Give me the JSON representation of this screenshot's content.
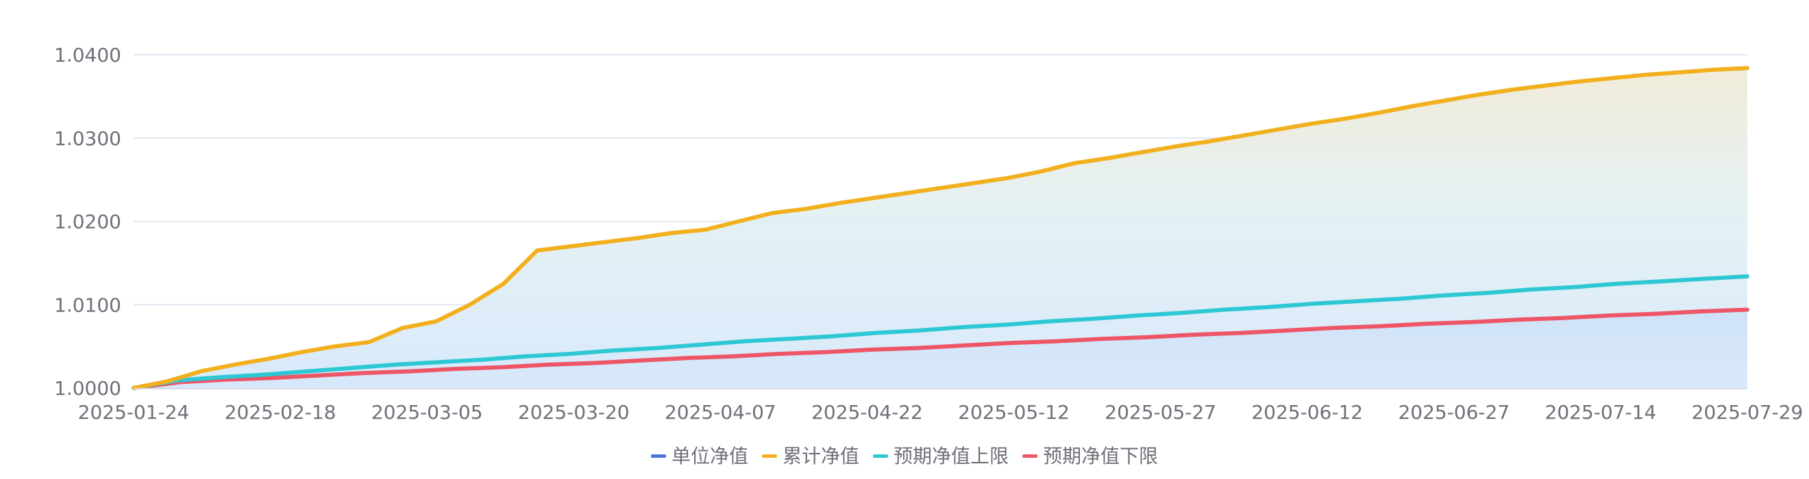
{
  "chart_data": {
    "type": "area",
    "ylim": [
      1.0,
      1.04
    ],
    "y_ticks": [
      "1.0000",
      "1.0100",
      "1.0200",
      "1.0300",
      "1.0400"
    ],
    "y_tick_values": [
      1.0,
      1.01,
      1.02,
      1.03,
      1.04
    ],
    "x_ticks": [
      "2025-01-24",
      "2025-02-18",
      "2025-03-05",
      "2025-03-20",
      "2025-04-07",
      "2025-04-22",
      "2025-05-12",
      "2025-05-27",
      "2025-06-12",
      "2025-06-27",
      "2025-07-14",
      "2025-07-29"
    ],
    "grid": true,
    "legend_position": "bottom",
    "series": [
      {
        "name": "单位净值",
        "color": "#4d73df",
        "values": []
      },
      {
        "name": "累计净值",
        "color": "#f2b01e",
        "values": [
          1.0,
          1.0008,
          1.002,
          1.0028,
          1.0035,
          1.0043,
          1.005,
          1.0055,
          1.0072,
          1.008,
          1.01,
          1.0125,
          1.0165,
          1.017,
          1.0175,
          1.018,
          1.0186,
          1.019,
          1.02,
          1.021,
          1.0215,
          1.0222,
          1.0228,
          1.0234,
          1.024,
          1.0246,
          1.0252,
          1.026,
          1.027,
          1.0276,
          1.0283,
          1.029,
          1.0296,
          1.0303,
          1.031,
          1.0317,
          1.0323,
          1.033,
          1.0338,
          1.0345,
          1.0352,
          1.0358,
          1.0363,
          1.0368,
          1.0372,
          1.0376,
          1.0379,
          1.0382,
          1.0384
        ]
      },
      {
        "name": "预期净值上限",
        "color": "#2ec7d4",
        "values": [
          1.0,
          1.0009,
          1.0013,
          1.0016,
          1.002,
          1.0024,
          1.0028,
          1.0031,
          1.0034,
          1.0038,
          1.0041,
          1.0045,
          1.0048,
          1.0052,
          1.0056,
          1.0059,
          1.0062,
          1.0066,
          1.0069,
          1.0073,
          1.0076,
          1.008,
          1.0083,
          1.0087,
          1.009,
          1.0094,
          1.0097,
          1.0101,
          1.0104,
          1.0107,
          1.0111,
          1.0114,
          1.0118,
          1.0121,
          1.0125,
          1.0128,
          1.0131,
          1.0134
        ]
      },
      {
        "name": "预期净值下限",
        "color": "#ee5566",
        "values": [
          1.0,
          1.0007,
          1.001,
          1.0012,
          1.0015,
          1.0018,
          1.002,
          1.0023,
          1.0025,
          1.0028,
          1.003,
          1.0033,
          1.0036,
          1.0038,
          1.0041,
          1.0043,
          1.0046,
          1.0048,
          1.0051,
          1.0054,
          1.0056,
          1.0059,
          1.0061,
          1.0064,
          1.0066,
          1.0069,
          1.0072,
          1.0074,
          1.0077,
          1.0079,
          1.0082,
          1.0084,
          1.0087,
          1.0089,
          1.0092,
          1.0094
        ]
      }
    ]
  }
}
